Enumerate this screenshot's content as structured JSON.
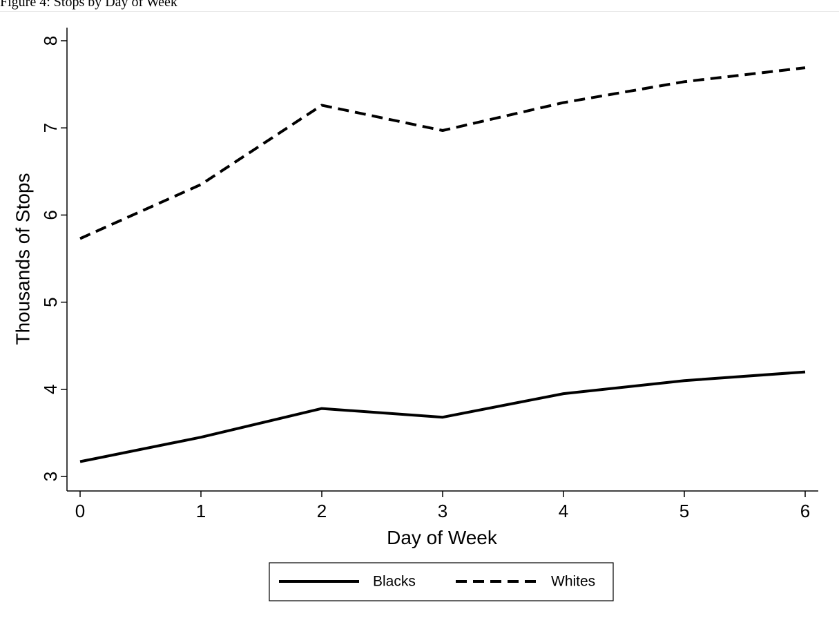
{
  "header": {
    "caption": "Figure 4: Stops by Day of Week"
  },
  "chart_data": {
    "type": "line",
    "title": "",
    "xlabel": "Day of Week",
    "ylabel": "Thousands of Stops",
    "xlim": [
      0,
      6
    ],
    "ylim": [
      3,
      8
    ],
    "x": [
      0,
      1,
      2,
      3,
      4,
      5,
      6
    ],
    "x_ticks": [
      "0",
      "1",
      "2",
      "3",
      "4",
      "5",
      "6"
    ],
    "y_ticks": [
      "3",
      "4",
      "5",
      "6",
      "7",
      "8"
    ],
    "grid": false,
    "legend_position": "bottom",
    "series": [
      {
        "name": "Blacks",
        "style": "solid",
        "color": "#000000",
        "values": [
          3.17,
          3.45,
          3.78,
          3.68,
          3.95,
          4.1,
          4.2
        ]
      },
      {
        "name": "Whites",
        "style": "dashed",
        "color": "#000000",
        "values": [
          5.73,
          6.35,
          7.26,
          6.97,
          7.29,
          7.53,
          7.69
        ]
      }
    ]
  }
}
